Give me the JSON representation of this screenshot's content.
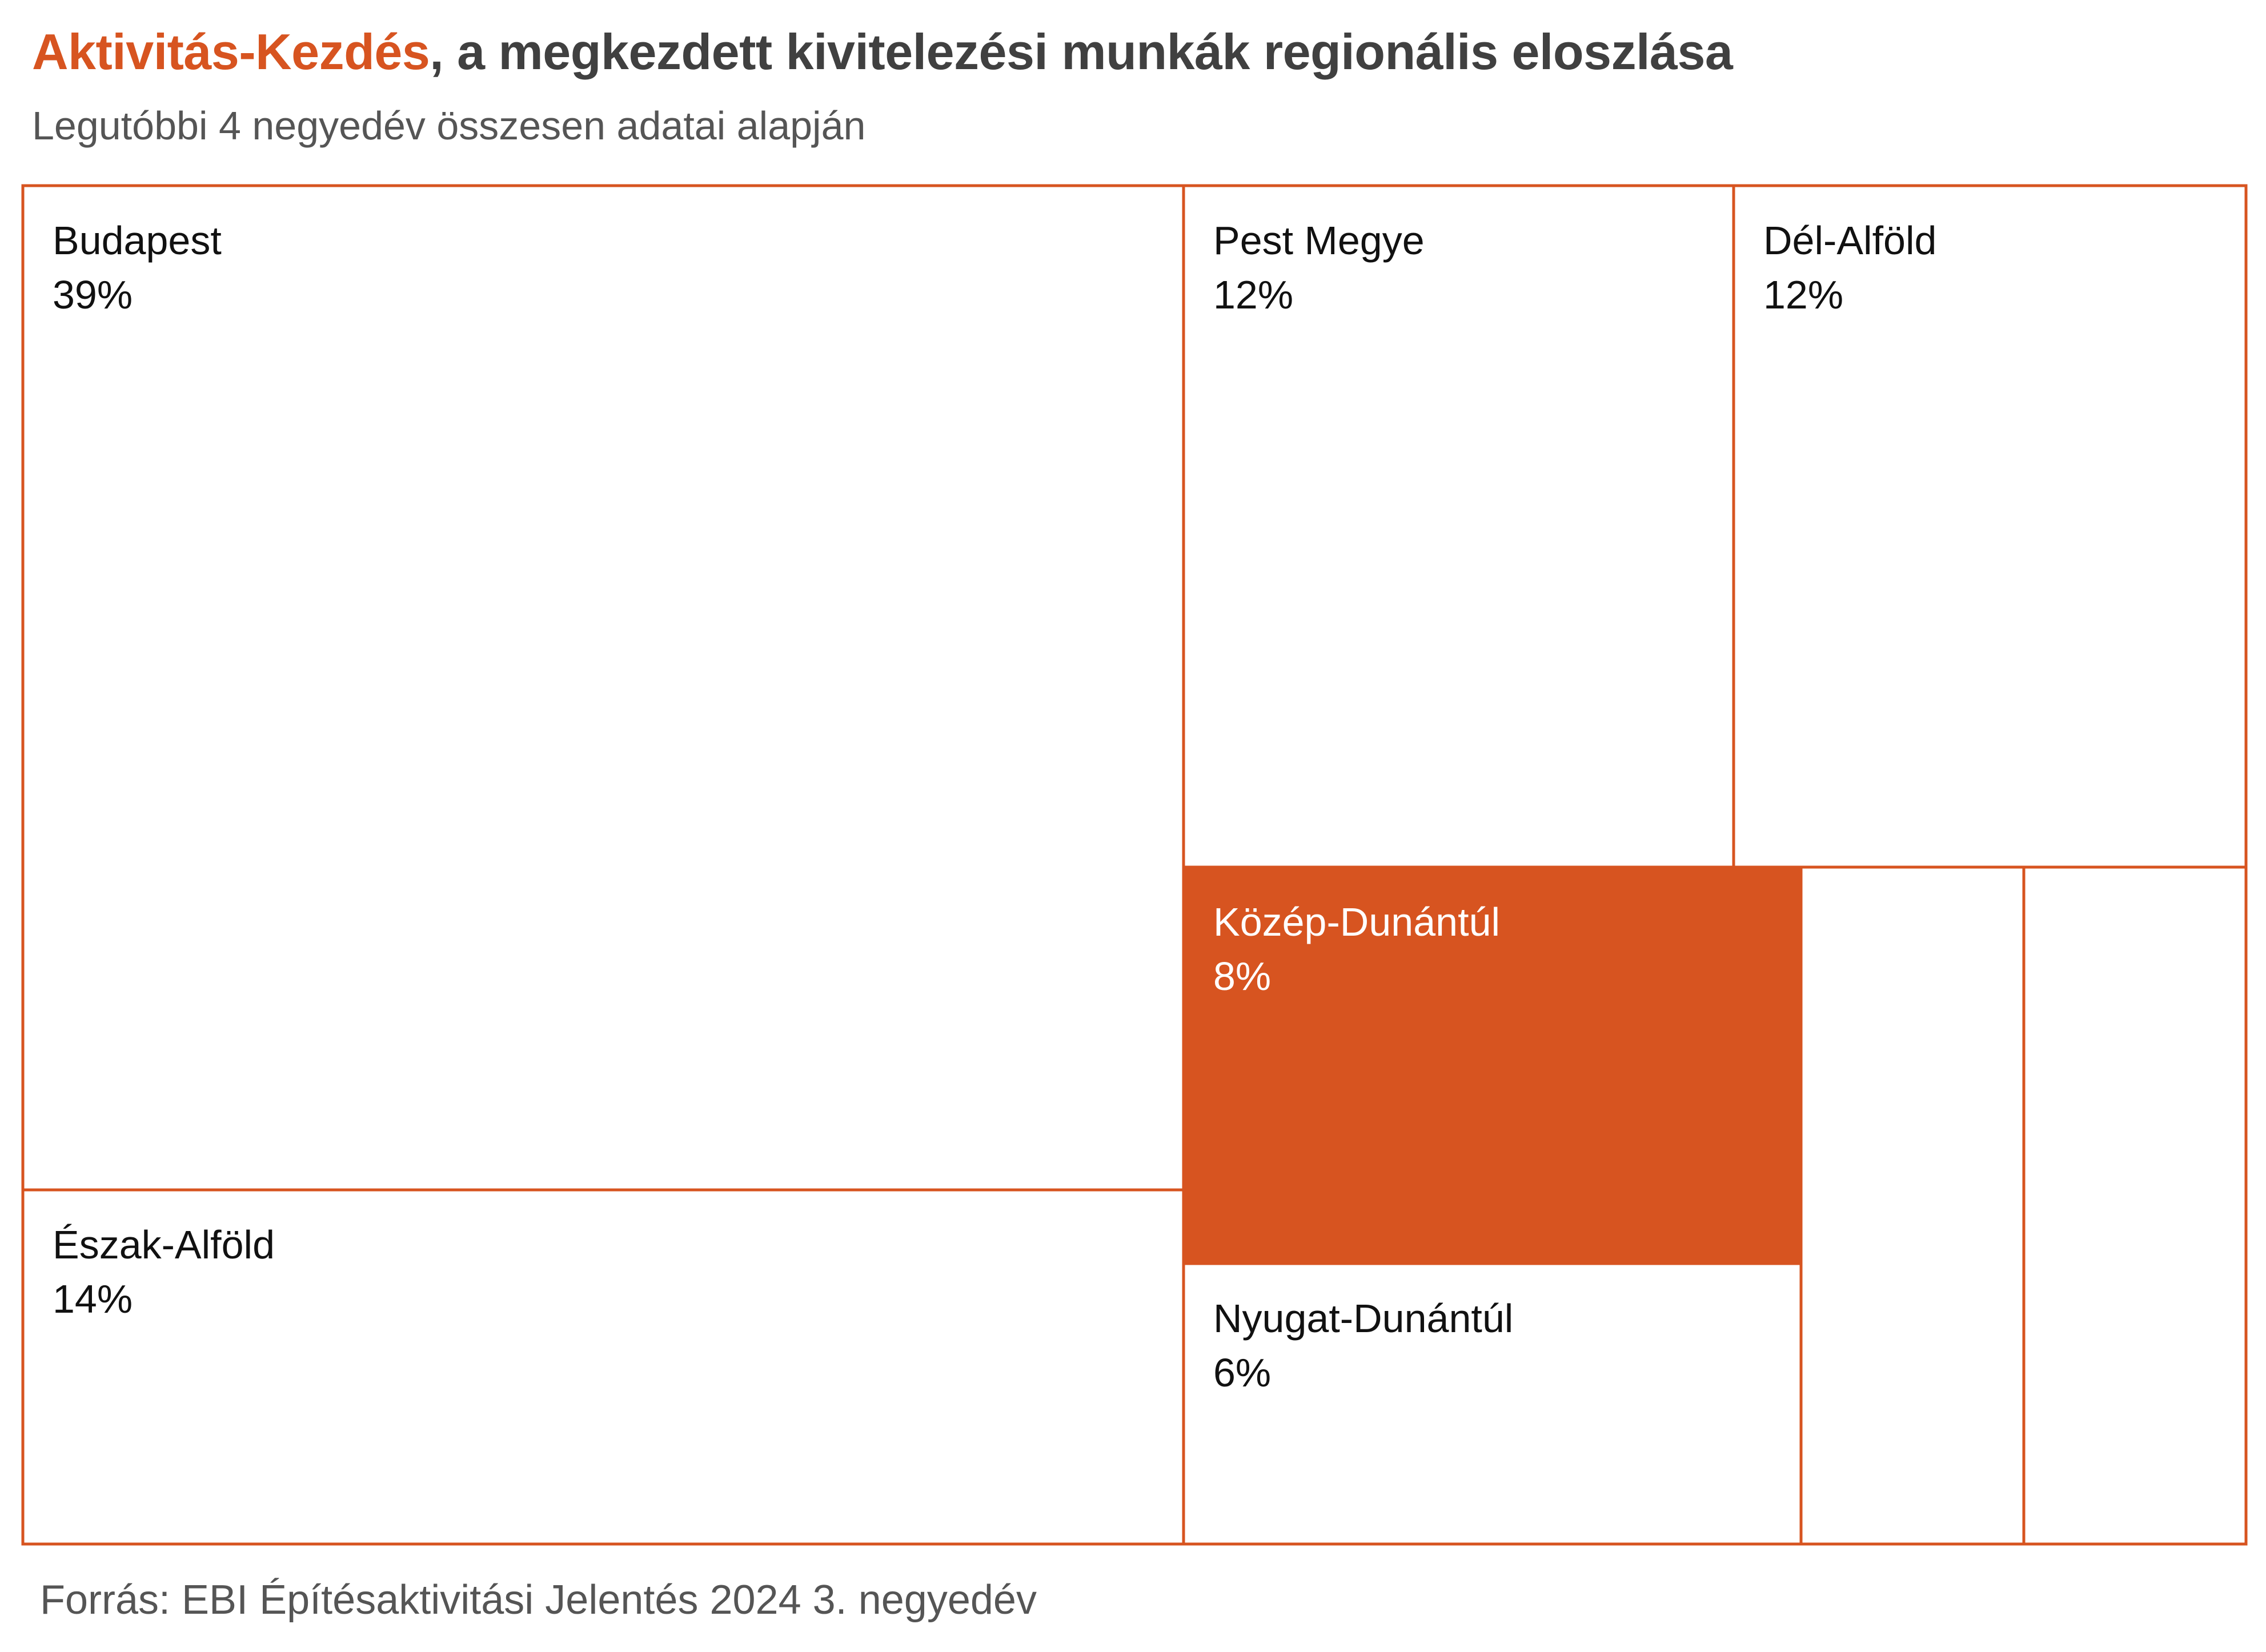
{
  "header": {
    "title_accent": "Aktivitás-Kezdés",
    "title_rest": ", a megkezdett kivitelezési munkák regionális eloszlása",
    "subtitle": "Legutóbbi 4 negyedév összesen adatai alapján"
  },
  "footer": {
    "source": "Forrás: EBI Építésaktivitási Jelentés 2024 3. negyedév"
  },
  "colors": {
    "accent": "#d75420",
    "border": "#d75420",
    "label_dark": "#111111",
    "label_light": "#ffffff",
    "title": "#404040",
    "subtitle": "#555555"
  },
  "chart_data": {
    "type": "treemap",
    "title": "Aktivitás-Kezdés, a megkezdett kivitelezési munkák regionális eloszlása",
    "subtitle": "Legutóbbi 4 negyedév összesen adatai alapján",
    "unit": "%",
    "items": [
      {
        "name": "Budapest",
        "value": 39,
        "label": "39%",
        "highlight": false
      },
      {
        "name": "Észak-Alföld",
        "value": 14,
        "label": "14%",
        "highlight": false
      },
      {
        "name": "Pest Megye",
        "value": 12,
        "label": "12%",
        "highlight": false
      },
      {
        "name": "Dél-Alföld",
        "value": 12,
        "label": "12%",
        "highlight": false
      },
      {
        "name": "Közép-Dunántúl",
        "value": 8,
        "label": "8%",
        "highlight": true
      },
      {
        "name": "Nyugat-Dunántúl",
        "value": 6,
        "label": "6%",
        "highlight": false
      },
      {
        "name": "",
        "value": 5,
        "label": "",
        "highlight": false
      },
      {
        "name": "",
        "value": 4,
        "label": "",
        "highlight": false
      }
    ]
  }
}
